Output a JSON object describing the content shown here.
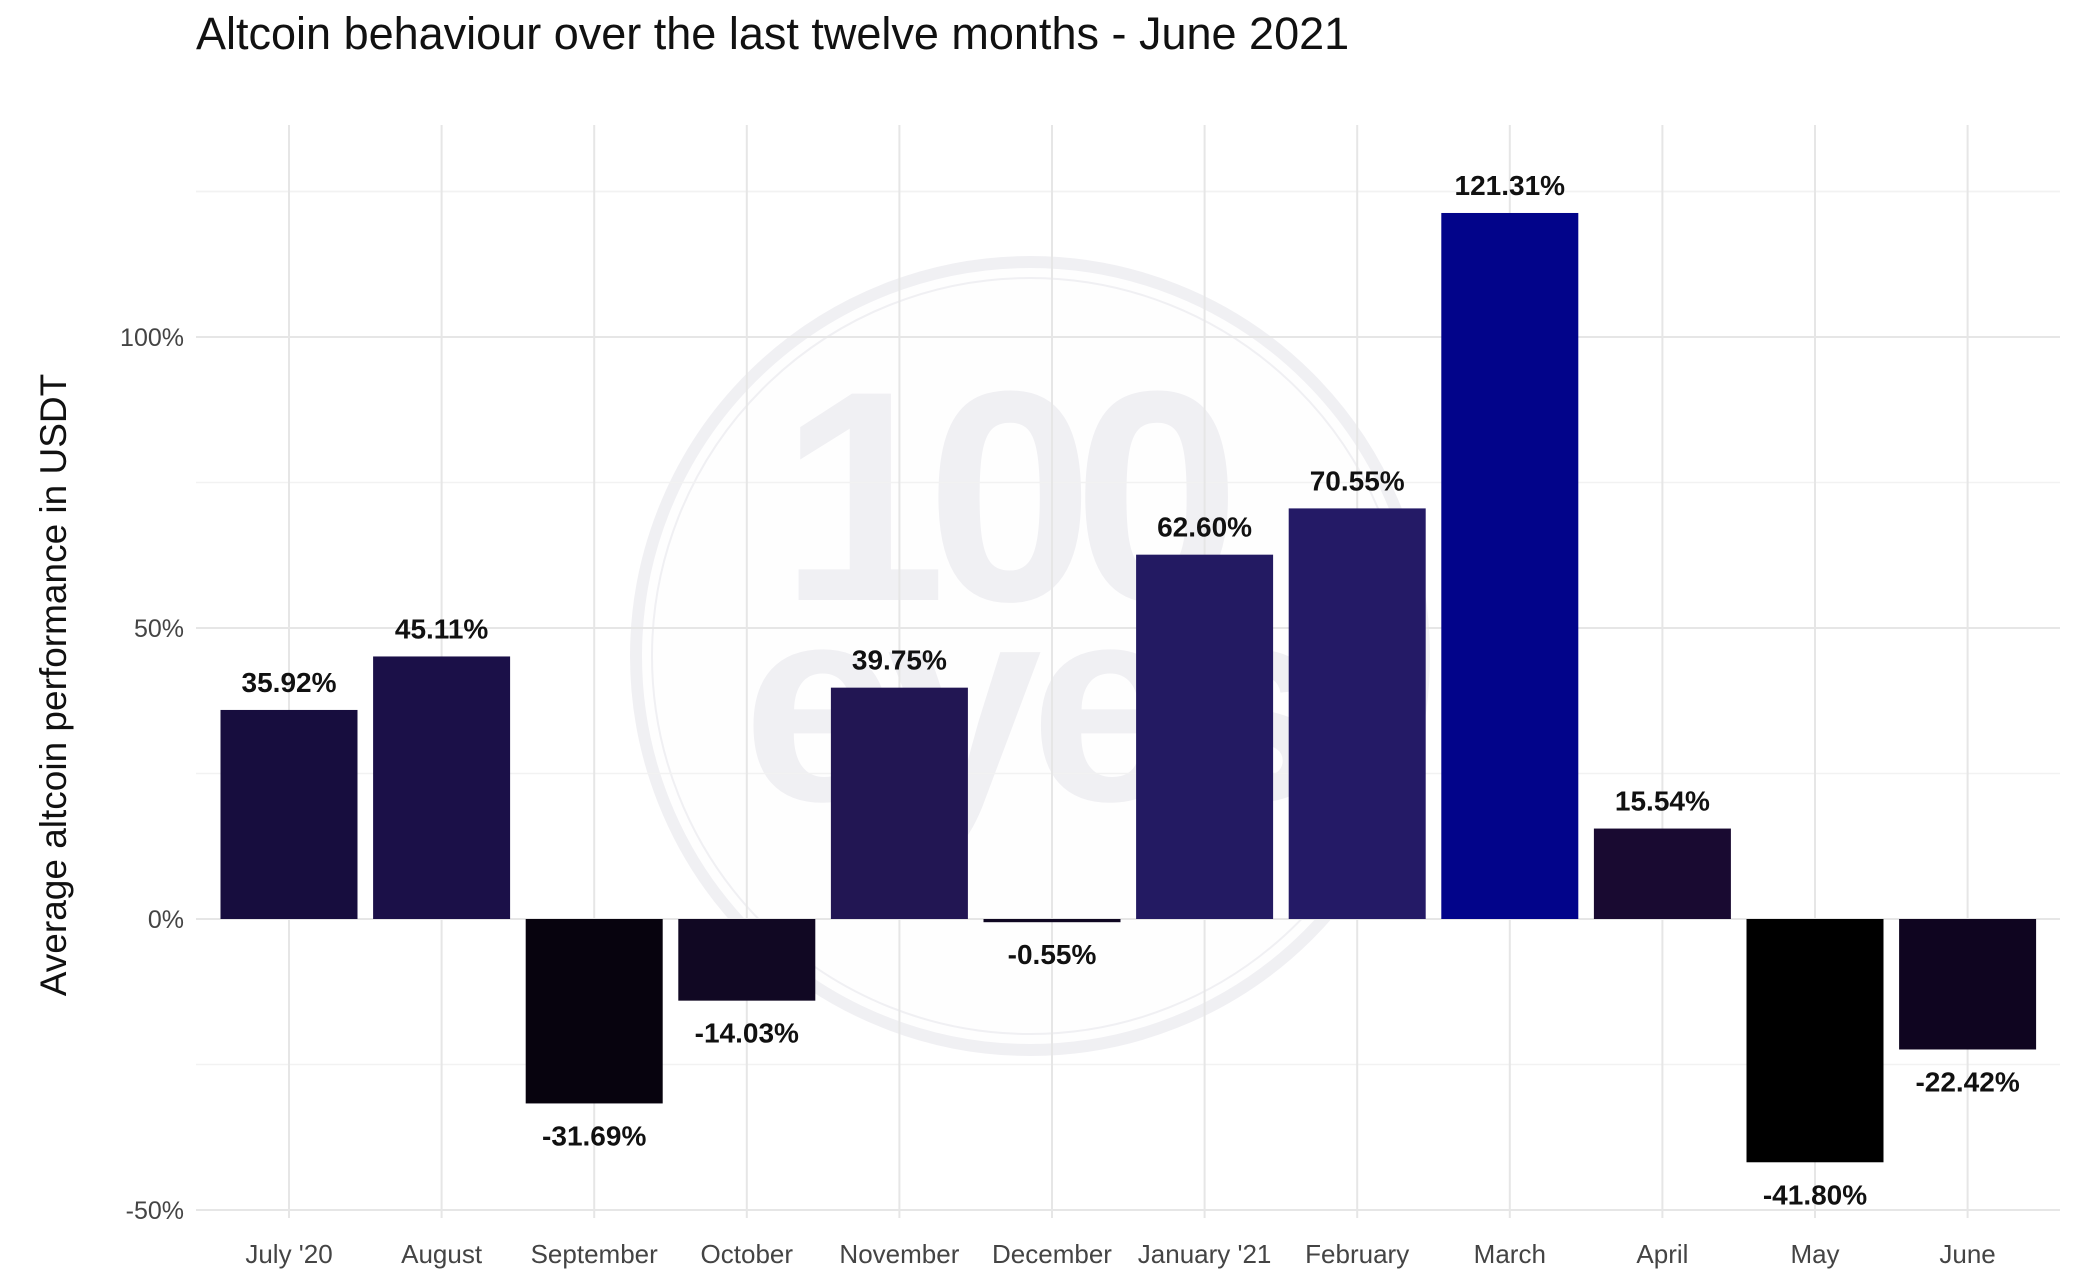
{
  "chart_data": {
    "type": "bar",
    "title": "Altcoin behaviour over the last twelve months - June 2021",
    "xlabel": "",
    "ylabel": "Average altcoin performance in USDT",
    "ylim": [
      -52,
      130
    ],
    "y_ticks": [
      -50,
      0,
      50,
      100
    ],
    "y_tick_labels": [
      "-50%",
      "0%",
      "50%",
      "100%"
    ],
    "grid": true,
    "categories": [
      "July '20",
      "August",
      "September",
      "October",
      "November",
      "December",
      "January '21",
      "February",
      "March",
      "April",
      "May",
      "June"
    ],
    "values": [
      35.92,
      45.11,
      -31.69,
      -14.03,
      39.75,
      -0.55,
      62.6,
      70.55,
      121.31,
      15.54,
      -41.8,
      -22.42
    ],
    "data_labels": [
      "35.92%",
      "45.11%",
      "-31.69%",
      "-14.03%",
      "39.75%",
      "-0.55%",
      "62.60%",
      "70.55%",
      "121.31%",
      "15.54%",
      "-41.80%",
      "-22.42%"
    ],
    "bar_colors": [
      "#170d3e",
      "#1b1048",
      "#07030e",
      "#110823",
      "#221653",
      "#0f0722",
      "#231a62",
      "#241a66",
      "#02048a",
      "#190a31",
      "#000000",
      "#0f0520"
    ]
  },
  "watermark": {
    "logo_text": "100 eyes"
  }
}
